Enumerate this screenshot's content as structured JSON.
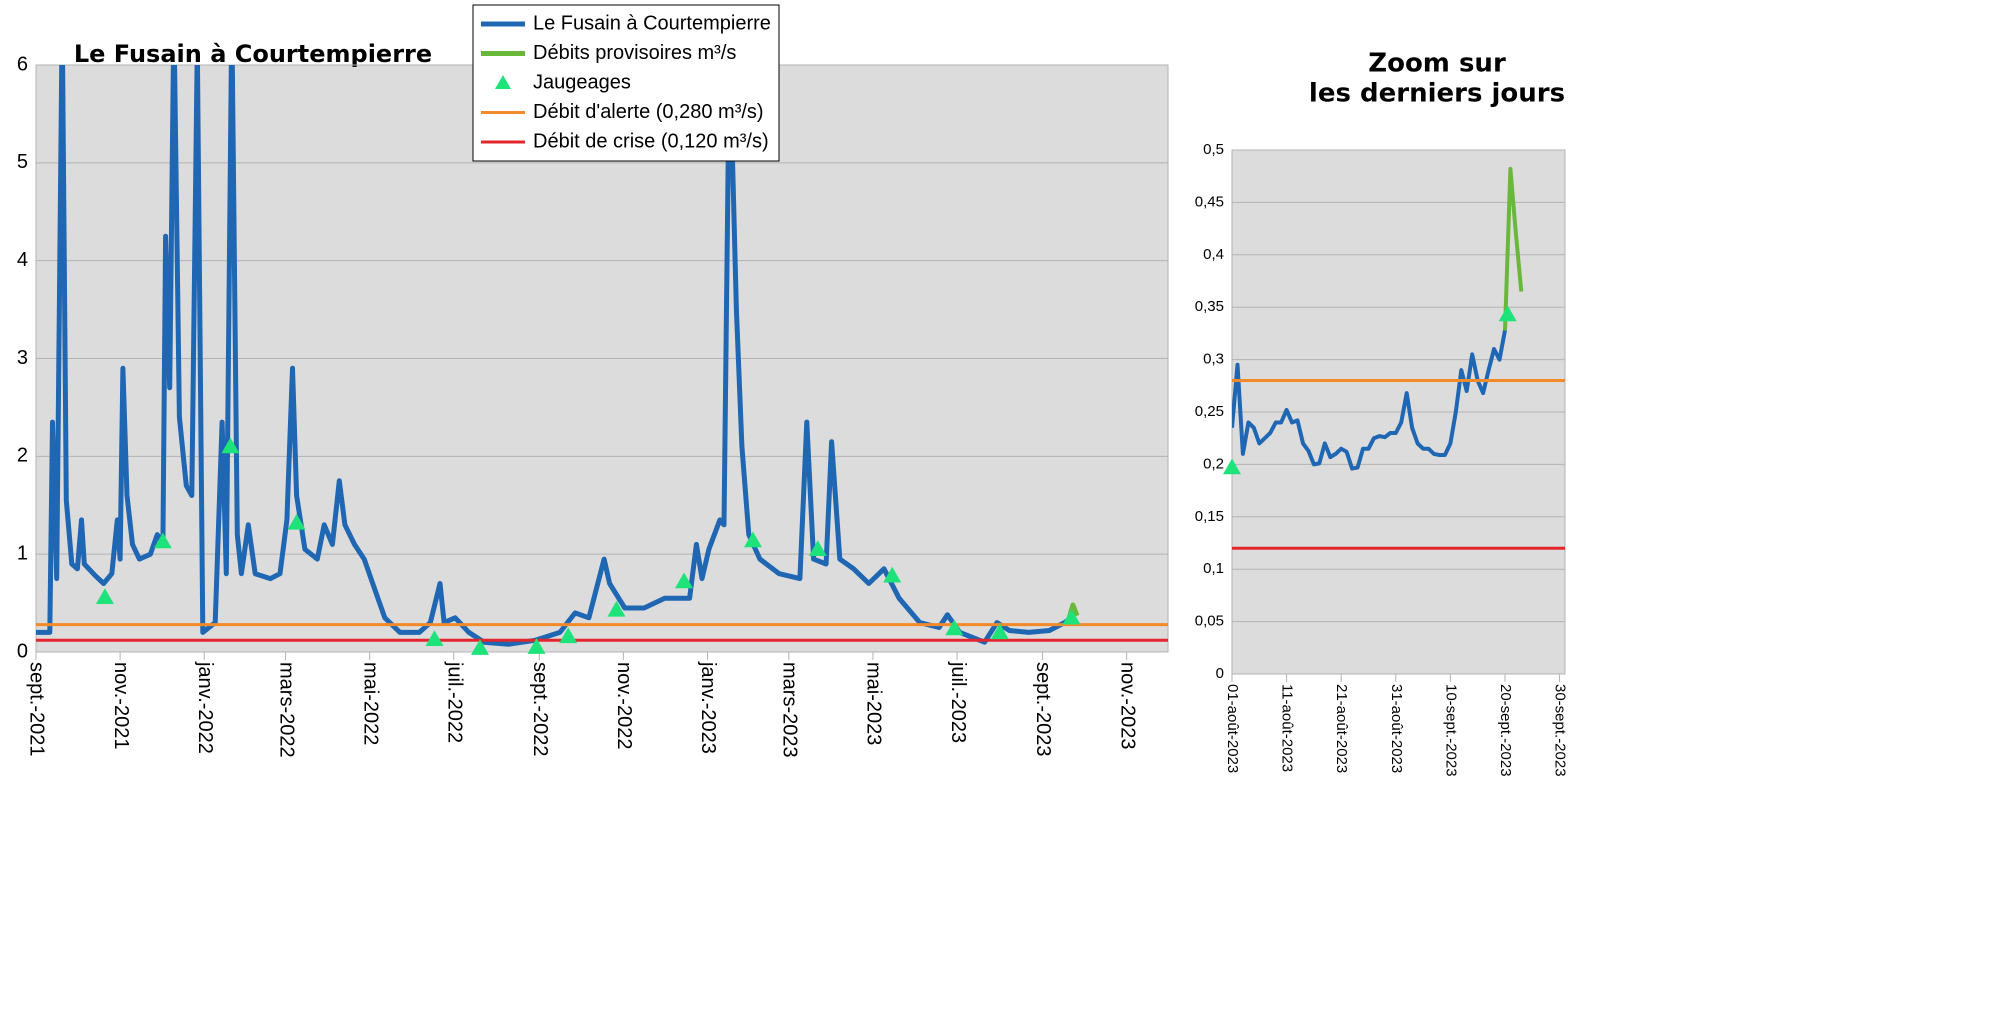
{
  "chart_data": [
    {
      "type": "line",
      "title": "Le Fusain à Courtempierre",
      "xlim": [
        0,
        821
      ],
      "xticks": [
        {
          "value": 0,
          "label": "sept.-2021"
        },
        {
          "value": 61,
          "label": "nov.-2021"
        },
        {
          "value": 122,
          "label": "janv.-2022"
        },
        {
          "value": 181,
          "label": "mars-2022"
        },
        {
          "value": 242,
          "label": "mai-2022"
        },
        {
          "value": 303,
          "label": "juil.-2022"
        },
        {
          "value": 365,
          "label": "sept.-2022"
        },
        {
          "value": 426,
          "label": "nov.-2022"
        },
        {
          "value": 487,
          "label": "janv.-2023"
        },
        {
          "value": 546,
          "label": "mars-2023"
        },
        {
          "value": 607,
          "label": "mai-2023"
        },
        {
          "value": 668,
          "label": "juil.-2023"
        },
        {
          "value": 730,
          "label": "sept.-2023"
        },
        {
          "value": 791,
          "label": "nov.-2023"
        }
      ],
      "ylim": [
        0,
        6
      ],
      "yticks": [
        0,
        1,
        2,
        3,
        4,
        5,
        6
      ],
      "grid": true,
      "legend": "top",
      "series": [
        {
          "name": "Le Fusain à Courtempierre",
          "color": "#1f66b3",
          "style": "line",
          "x": [
            0,
            10,
            12,
            15,
            19,
            22,
            26,
            30,
            33,
            35,
            43,
            49,
            55,
            59,
            61,
            63,
            66,
            70,
            75,
            83,
            88,
            92,
            94,
            97,
            100,
            104,
            109,
            113,
            117,
            121,
            130,
            135,
            138,
            142,
            146,
            149,
            154,
            159,
            170,
            177,
            182,
            186,
            189,
            195,
            204,
            209,
            215,
            220,
            224,
            231,
            238,
            243,
            253,
            264,
            278,
            286,
            293,
            296,
            304,
            314,
            325,
            343,
            362,
            380,
            391,
            401,
            412,
            416,
            427,
            441,
            456,
            474,
            479,
            483,
            488,
            496,
            499,
            503,
            508,
            512,
            517,
            525,
            539,
            554,
            559,
            564,
            573,
            577,
            583,
            593,
            604,
            615,
            626,
            641,
            655,
            661,
            670,
            688,
            697,
            706,
            720,
            735,
            746,
            749
          ],
          "values": [
            0.2,
            0.2,
            2.35,
            0.75,
            6.5,
            1.55,
            0.9,
            0.85,
            1.35,
            0.9,
            0.78,
            0.7,
            0.8,
            1.35,
            0.95,
            2.9,
            1.6,
            1.1,
            0.95,
            1.0,
            1.2,
            1.1,
            4.25,
            2.7,
            6.5,
            2.4,
            1.7,
            1.6,
            6.2,
            0.2,
            0.3,
            2.35,
            0.8,
            6.5,
            1.2,
            0.8,
            1.3,
            0.8,
            0.75,
            0.8,
            1.35,
            2.9,
            1.6,
            1.05,
            0.95,
            1.3,
            1.1,
            1.75,
            1.3,
            1.1,
            0.95,
            0.75,
            0.35,
            0.2,
            0.2,
            0.3,
            0.7,
            0.3,
            0.35,
            0.2,
            0.1,
            0.08,
            0.12,
            0.2,
            0.4,
            0.35,
            0.95,
            0.7,
            0.45,
            0.45,
            0.55,
            0.55,
            1.1,
            0.75,
            1.05,
            1.35,
            1.3,
            6.2,
            3.5,
            2.1,
            1.2,
            0.95,
            0.8,
            0.75,
            2.35,
            0.95,
            0.9,
            2.15,
            0.95,
            0.85,
            0.7,
            0.85,
            0.55,
            0.3,
            0.25,
            0.38,
            0.2,
            0.1,
            0.3,
            0.22,
            0.2,
            0.22,
            0.3,
            0.33
          ]
        },
        {
          "name": "Débits provisoires m³/s",
          "color": "#6ab83a",
          "style": "line",
          "x": [
            749,
            752,
            755
          ],
          "values": [
            0.33,
            0.48,
            0.37
          ]
        },
        {
          "name": " Jaugeages",
          "color": "#1ee37a",
          "style": "marker",
          "x": [
            50,
            92,
            141,
            189,
            289,
            322,
            363,
            386,
            421,
            470,
            520,
            567,
            621,
            666,
            699,
            751
          ],
          "values": [
            0.56,
            1.13,
            2.1,
            1.32,
            0.13,
            0.04,
            0.05,
            0.16,
            0.43,
            0.72,
            1.14,
            1.05,
            0.78,
            0.24,
            0.2,
            0.35
          ]
        },
        {
          "name": "Débit d'alerte (0,280 m³/s)",
          "color": "#f28a2a",
          "style": "hline",
          "values": [
            0.28
          ]
        },
        {
          "name": "Débit de crise (0,120 m³/s)",
          "color": "#e3262b",
          "style": "hline",
          "values": [
            0.12
          ]
        }
      ]
    },
    {
      "type": "line",
      "title": [
        "Zoom sur",
        "les derniers jours"
      ],
      "xlim": [
        0,
        61
      ],
      "xticks": [
        {
          "value": 0,
          "label": "01-août-2023"
        },
        {
          "value": 10,
          "label": "11-août-2023"
        },
        {
          "value": 20,
          "label": "21-août-2023"
        },
        {
          "value": 30,
          "label": "31-août-2023"
        },
        {
          "value": 40,
          "label": "10-sept.-2023"
        },
        {
          "value": 50,
          "label": "20-sept.-2023"
        },
        {
          "value": 60,
          "label": "30-sept.-2023"
        }
      ],
      "ylim": [
        0,
        0.5
      ],
      "yticks": [
        0,
        {
          "value": 0.05,
          "label": "0,05"
        },
        {
          "value": 0.1,
          "label": "0,1"
        },
        {
          "value": 0.15,
          "label": "0,15"
        },
        {
          "value": 0.2,
          "label": "0,2"
        },
        {
          "value": 0.25,
          "label": "0,25"
        },
        {
          "value": 0.3,
          "label": "0,3"
        },
        {
          "value": 0.35,
          "label": "0,35"
        },
        {
          "value": 0.4,
          "label": "0,4"
        },
        {
          "value": 0.45,
          "label": "0,45"
        },
        {
          "value": 0.5,
          "label": "0,5"
        }
      ],
      "grid": true,
      "series": [
        {
          "color": "#1f66b3",
          "style": "line",
          "x": [
            0,
            1,
            2,
            3,
            4,
            5,
            6,
            7,
            8,
            9,
            10,
            11,
            12,
            13,
            14,
            15,
            16,
            17,
            18,
            19,
            20,
            21,
            22,
            23,
            24,
            25,
            26,
            27,
            28,
            29,
            30,
            31,
            32,
            33,
            34,
            35,
            36,
            37,
            38,
            39,
            40,
            41,
            42,
            43,
            44,
            45,
            46,
            47,
            48,
            49,
            50
          ],
          "values": [
            0.235,
            0.295,
            0.21,
            0.24,
            0.235,
            0.22,
            0.225,
            0.23,
            0.24,
            0.24,
            0.252,
            0.24,
            0.242,
            0.22,
            0.213,
            0.2,
            0.201,
            0.22,
            0.207,
            0.21,
            0.215,
            0.212,
            0.196,
            0.197,
            0.215,
            0.215,
            0.225,
            0.227,
            0.226,
            0.23,
            0.23,
            0.24,
            0.268,
            0.235,
            0.22,
            0.215,
            0.215,
            0.21,
            0.209,
            0.209,
            0.22,
            0.25,
            0.29,
            0.27,
            0.305,
            0.28,
            0.268,
            0.29,
            0.31,
            0.3,
            0.328
          ]
        },
        {
          "color": "#6ab83a",
          "style": "line",
          "x": [
            50,
            51,
            52,
            53
          ],
          "values": [
            0.328,
            0.482,
            0.42,
            0.365
          ]
        },
        {
          "color": "#1ee37a",
          "style": "marker",
          "x": [
            0,
            50.5
          ],
          "values": [
            0.197,
            0.343
          ]
        },
        {
          "color": "#f28a2a",
          "style": "hline",
          "values": [
            0.28
          ]
        },
        {
          "color": "#e3262b",
          "style": "hline",
          "values": [
            0.12
          ]
        }
      ]
    }
  ]
}
